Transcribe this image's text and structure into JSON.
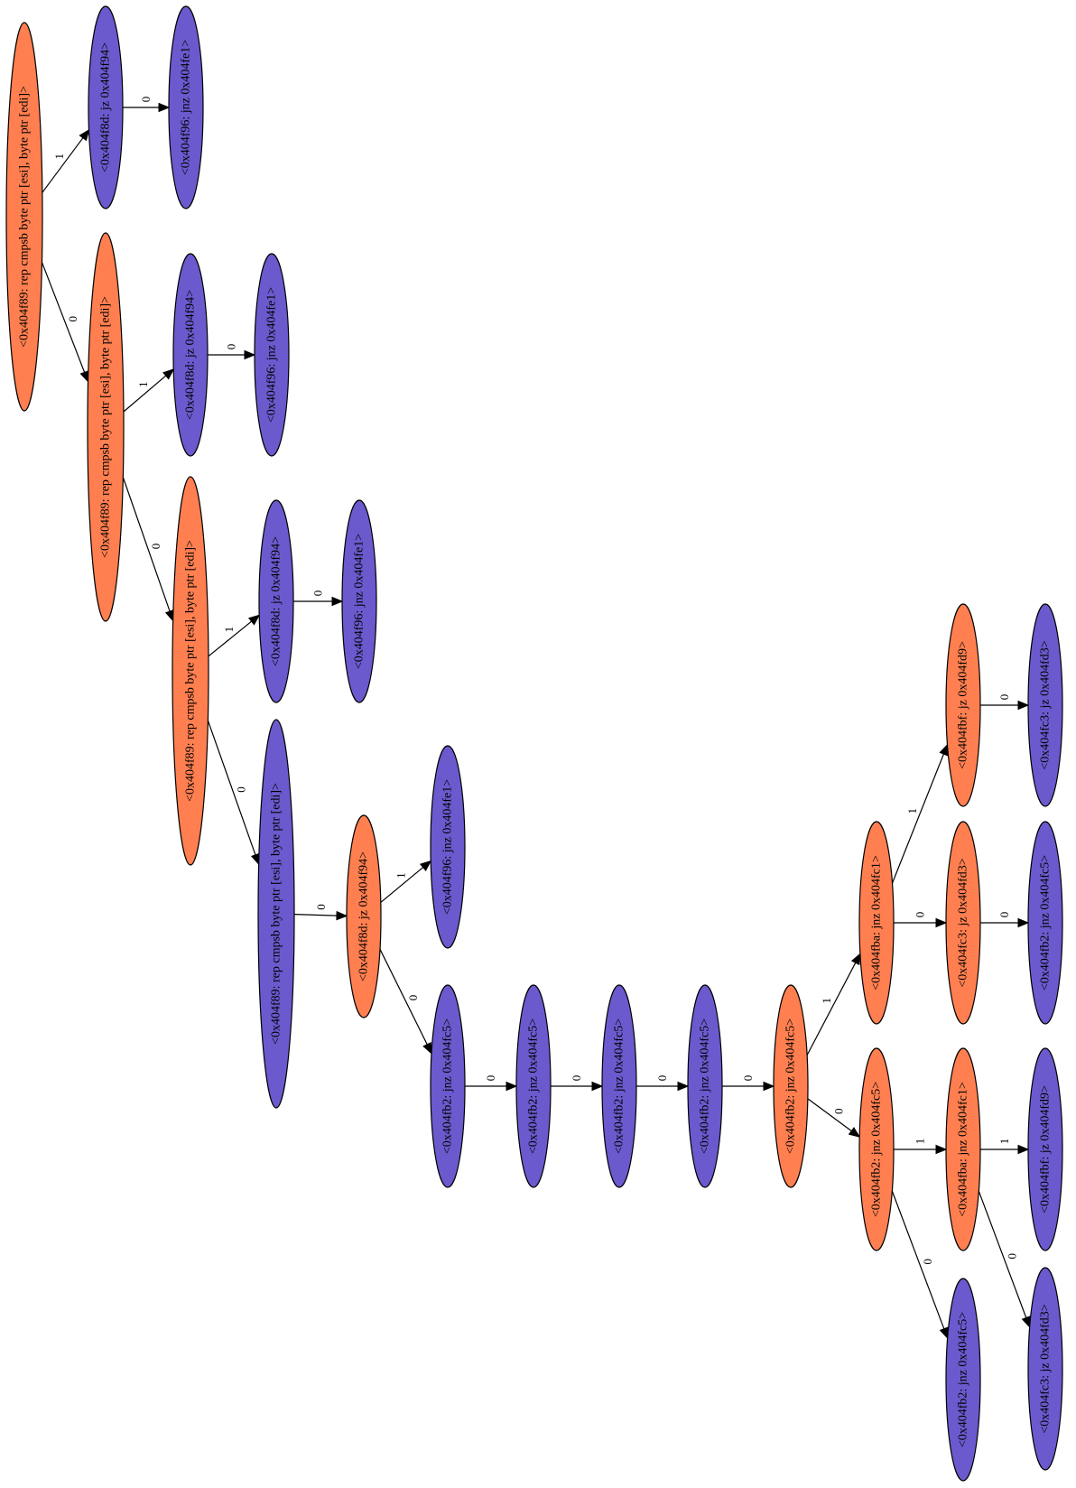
{
  "graph": {
    "colors": {
      "branch": "#ff7f50",
      "leaf": "#6a5acd",
      "edge": "#000000",
      "background": "#ffffff"
    },
    "nodes": [
      {
        "id": "n1",
        "label": "<0x404f89: rep cmpsb byte ptr [esi], byte ptr [edi]>",
        "kind": "branch"
      },
      {
        "id": "n2",
        "label": "<0x404f8d: jz 0x404f94>",
        "kind": "leaf"
      },
      {
        "id": "n3",
        "label": "<0x404f96: jnz 0x404fe1>",
        "kind": "leaf"
      },
      {
        "id": "n4",
        "label": "<0x404f89: rep cmpsb byte ptr [esi], byte ptr [edi]>",
        "kind": "branch"
      },
      {
        "id": "n5",
        "label": "<0x404f8d: jz 0x404f94>",
        "kind": "leaf"
      },
      {
        "id": "n6",
        "label": "<0x404f96: jnz 0x404fe1>",
        "kind": "leaf"
      },
      {
        "id": "n7",
        "label": "<0x404f89: rep cmpsb byte ptr [esi], byte ptr [edi]>",
        "kind": "branch"
      },
      {
        "id": "n8",
        "label": "<0x404f8d: jz 0x404f94>",
        "kind": "leaf"
      },
      {
        "id": "n9",
        "label": "<0x404f96: jnz 0x404fe1>",
        "kind": "leaf"
      },
      {
        "id": "n10",
        "label": "<0x404f89: rep cmpsb byte ptr [esi], byte ptr [edi]>",
        "kind": "leaf"
      },
      {
        "id": "n11",
        "label": "<0x404f8d: jz 0x404f94>",
        "kind": "branch"
      },
      {
        "id": "n12",
        "label": "<0x404f96: jnz 0x404fe1>",
        "kind": "leaf"
      },
      {
        "id": "n13",
        "label": "<0x404fb2: jnz 0x404fc5>",
        "kind": "leaf"
      },
      {
        "id": "n14",
        "label": "<0x404fb2: jnz 0x404fc5>",
        "kind": "leaf"
      },
      {
        "id": "n15",
        "label": "<0x404fb2: jnz 0x404fc5>",
        "kind": "leaf"
      },
      {
        "id": "n16",
        "label": "<0x404fb2: jnz 0x404fc5>",
        "kind": "leaf"
      },
      {
        "id": "n17",
        "label": "<0x404fb2: jnz 0x404fc5>",
        "kind": "branch"
      },
      {
        "id": "n18",
        "label": "<0x404fba: jnz 0x404fc1>",
        "kind": "branch"
      },
      {
        "id": "n19",
        "label": "<0x404fbf: jz 0x404fd9>",
        "kind": "branch"
      },
      {
        "id": "n20",
        "label": "<0x404fc3: jz 0x404fd3>",
        "kind": "leaf"
      },
      {
        "id": "n21",
        "label": "<0x404fc3: jz 0x404fd3>",
        "kind": "branch"
      },
      {
        "id": "n22",
        "label": "<0x404fb2: jnz 0x404fc5>",
        "kind": "leaf"
      },
      {
        "id": "n23",
        "label": "<0x404fb2: jnz 0x404fc5>",
        "kind": "branch"
      },
      {
        "id": "n24",
        "label": "<0x404fba: jnz 0x404fc1>",
        "kind": "branch"
      },
      {
        "id": "n25",
        "label": "<0x404fbf: jz 0x404fd9>",
        "kind": "leaf"
      },
      {
        "id": "n26",
        "label": "<0x404fb2: jnz 0x404fc5>",
        "kind": "leaf"
      },
      {
        "id": "n27",
        "label": "<0x404fc3: jz 0x404fd3>",
        "kind": "leaf"
      }
    ],
    "edges": [
      {
        "from": "n1",
        "to": "n2",
        "label": "1"
      },
      {
        "from": "n2",
        "to": "n3",
        "label": "0"
      },
      {
        "from": "n1",
        "to": "n4",
        "label": "0"
      },
      {
        "from": "n4",
        "to": "n5",
        "label": "1"
      },
      {
        "from": "n5",
        "to": "n6",
        "label": "0"
      },
      {
        "from": "n4",
        "to": "n7",
        "label": "0"
      },
      {
        "from": "n7",
        "to": "n8",
        "label": "1"
      },
      {
        "from": "n8",
        "to": "n9",
        "label": "0"
      },
      {
        "from": "n7",
        "to": "n10",
        "label": "0"
      },
      {
        "from": "n10",
        "to": "n11",
        "label": "0"
      },
      {
        "from": "n11",
        "to": "n12",
        "label": "1"
      },
      {
        "from": "n11",
        "to": "n13",
        "label": "0"
      },
      {
        "from": "n13",
        "to": "n14",
        "label": "0"
      },
      {
        "from": "n14",
        "to": "n15",
        "label": "0"
      },
      {
        "from": "n15",
        "to": "n16",
        "label": "0"
      },
      {
        "from": "n16",
        "to": "n17",
        "label": "0"
      },
      {
        "from": "n17",
        "to": "n18",
        "label": "1"
      },
      {
        "from": "n18",
        "to": "n19",
        "label": "1"
      },
      {
        "from": "n19",
        "to": "n20",
        "label": "0"
      },
      {
        "from": "n18",
        "to": "n21",
        "label": "0"
      },
      {
        "from": "n21",
        "to": "n22",
        "label": "0"
      },
      {
        "from": "n17",
        "to": "n23",
        "label": "0"
      },
      {
        "from": "n23",
        "to": "n24",
        "label": "1"
      },
      {
        "from": "n24",
        "to": "n25",
        "label": "1"
      },
      {
        "from": "n23",
        "to": "n26",
        "label": "0"
      },
      {
        "from": "n24",
        "to": "n27",
        "label": "0"
      }
    ]
  }
}
